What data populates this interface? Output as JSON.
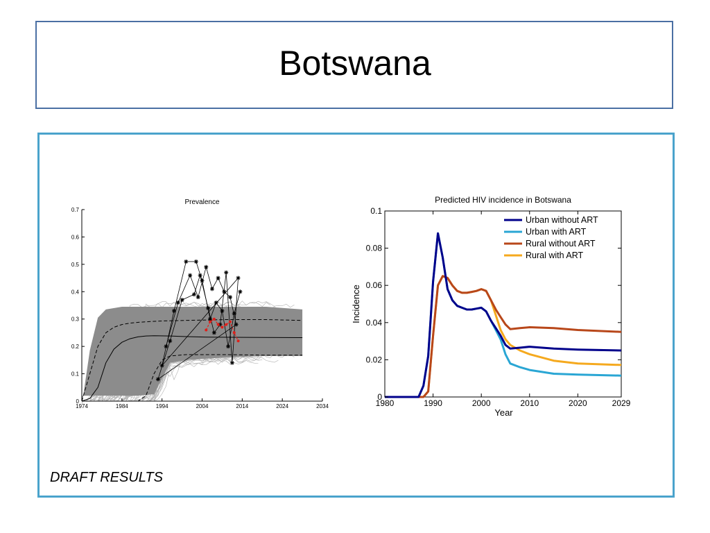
{
  "slide": {
    "title": "Botswana",
    "footer": "DRAFT RESULTS"
  },
  "colors": {
    "title_border": "#4a6fa3",
    "content_border": "#4aa3cc",
    "urban_no_art": "#00008b",
    "urban_art": "#2aa6d4",
    "rural_no_art": "#b8471a",
    "rural_art": "#f5a91e"
  },
  "chart_data": [
    {
      "type": "line",
      "title": "Prevalence",
      "xlabel": "",
      "ylabel": "",
      "xlim": [
        1974,
        2034
      ],
      "ylim": [
        0,
        0.7
      ],
      "xticks": [
        "1974",
        "1984",
        "1994",
        "2004",
        "2014",
        "2024",
        "2034"
      ],
      "yticks": [
        "0",
        "0.1",
        "0.2",
        "0.3",
        "0.4",
        "0.5",
        "0.6",
        "0.7"
      ],
      "grid": false,
      "series": [
        {
          "style": "solid",
          "x": [
            1974,
            1976,
            1978,
            1980,
            1982,
            1984,
            1986,
            1988,
            1990,
            1992,
            1996,
            2000,
            2005,
            2015,
            2029
          ],
          "y": [
            0,
            0.01,
            0.05,
            0.14,
            0.19,
            0.215,
            0.228,
            0.235,
            0.238,
            0.239,
            0.238,
            0.236,
            0.234,
            0.233,
            0.232
          ]
        },
        {
          "style": "dashed",
          "x": [
            1974,
            1976,
            1978,
            1980,
            1982,
            1984,
            1986,
            1988,
            1990,
            1994,
            2000,
            2010,
            2020,
            2029
          ],
          "y": [
            0,
            0.1,
            0.2,
            0.25,
            0.27,
            0.28,
            0.285,
            0.288,
            0.29,
            0.293,
            0.295,
            0.298,
            0.298,
            0.295
          ]
        },
        {
          "style": "dashed",
          "x": [
            1974,
            1984,
            1988,
            1990,
            1992,
            1994,
            1996,
            2000,
            2010,
            2020,
            2029
          ],
          "y": [
            0,
            0,
            0,
            0.02,
            0.1,
            0.15,
            0.165,
            0.17,
            0.17,
            0.168,
            0.168
          ]
        }
      ],
      "uncertainty_band": {
        "x": [
          1974,
          1976,
          1978,
          1980,
          1984,
          1988,
          1992,
          1996,
          2000,
          2010,
          2020,
          2029
        ],
        "lower": [
          0,
          0,
          0,
          0,
          0,
          0,
          0.005,
          0.12,
          0.13,
          0.14,
          0.145,
          0.145
        ],
        "upper": [
          0,
          0.2,
          0.32,
          0.35,
          0.36,
          0.36,
          0.36,
          0.36,
          0.36,
          0.36,
          0.36,
          0.35
        ]
      },
      "observations": [
        [
          1993,
          0.08
        ],
        [
          1994,
          0.13
        ],
        [
          1995,
          0.2
        ],
        [
          1996,
          0.22
        ],
        [
          1997,
          0.33
        ],
        [
          1998,
          0.36
        ],
        [
          1999,
          0.37
        ],
        [
          2000,
          0.51
        ],
        [
          2001,
          0.46
        ],
        [
          2002,
          0.39
        ],
        [
          2002.5,
          0.51
        ],
        [
          2003,
          0.38
        ],
        [
          2003.5,
          0.46
        ],
        [
          2004,
          0.44
        ],
        [
          2005,
          0.49
        ],
        [
          2005.5,
          0.34
        ],
        [
          2006,
          0.3
        ],
        [
          2006.5,
          0.41
        ],
        [
          2007,
          0.25
        ],
        [
          2007.5,
          0.36
        ],
        [
          2008,
          0.45
        ],
        [
          2008.5,
          0.28
        ],
        [
          2009,
          0.33
        ],
        [
          2009.5,
          0.4
        ],
        [
          2010,
          0.47
        ],
        [
          2010.5,
          0.2
        ],
        [
          2011,
          0.38
        ],
        [
          2011.5,
          0.14
        ],
        [
          2012,
          0.32
        ],
        [
          2012.5,
          0.28
        ],
        [
          2013,
          0.45
        ],
        [
          2013.5,
          0.4
        ]
      ],
      "red_points": [
        [
          2005,
          0.26
        ],
        [
          2006,
          0.29
        ],
        [
          2007,
          0.3
        ],
        [
          2008,
          0.28
        ],
        [
          2009,
          0.27
        ],
        [
          2010,
          0.28
        ],
        [
          2011,
          0.29
        ],
        [
          2012,
          0.25
        ],
        [
          2013,
          0.22
        ]
      ]
    },
    {
      "type": "line",
      "title": "Predicted HIV incidence in Botswana",
      "xlabel": "Year",
      "ylabel": "Incidence",
      "xlim": [
        1980,
        2029
      ],
      "ylim": [
        0,
        0.1
      ],
      "xticks": [
        "1980",
        "1990",
        "2000",
        "2010",
        "2020",
        "2029"
      ],
      "yticks": [
        "0",
        "0.02",
        "0.04",
        "0.06",
        "0.08",
        "0.1"
      ],
      "grid": false,
      "legend_position": "top-right",
      "series": [
        {
          "name": "Urban without ART",
          "x": [
            1980,
            1987,
            1988,
            1989,
            1990,
            1991,
            1992,
            1993,
            1994,
            1995,
            1996,
            1997,
            1998,
            1999,
            2000,
            2001,
            2002,
            2003,
            2004,
            2005,
            2006,
            2008,
            2010,
            2015,
            2020,
            2029
          ],
          "y": [
            0,
            0,
            0.006,
            0.022,
            0.062,
            0.088,
            0.075,
            0.058,
            0.052,
            0.049,
            0.048,
            0.047,
            0.047,
            0.0475,
            0.048,
            0.046,
            0.041,
            0.037,
            0.033,
            0.028,
            0.026,
            0.0265,
            0.027,
            0.026,
            0.0255,
            0.025
          ]
        },
        {
          "name": "Urban with ART",
          "x": [
            1980,
            1987,
            1988,
            1989,
            1990,
            1991,
            1992,
            1993,
            1994,
            1995,
            1996,
            1997,
            1998,
            1999,
            2000,
            2001,
            2002,
            2003,
            2004,
            2005,
            2006,
            2008,
            2010,
            2015,
            2020,
            2029
          ],
          "y": [
            0,
            0,
            0.006,
            0.022,
            0.062,
            0.088,
            0.075,
            0.058,
            0.052,
            0.049,
            0.048,
            0.047,
            0.047,
            0.0475,
            0.048,
            0.046,
            0.041,
            0.036,
            0.031,
            0.023,
            0.018,
            0.016,
            0.0145,
            0.0125,
            0.012,
            0.0115
          ]
        },
        {
          "name": "Rural without ART",
          "x": [
            1980,
            1988,
            1989,
            1990,
            1991,
            1992,
            1993,
            1994,
            1995,
            1996,
            1997,
            1998,
            1999,
            2000,
            2001,
            2002,
            2003,
            2004,
            2005,
            2006,
            2008,
            2010,
            2015,
            2020,
            2029
          ],
          "y": [
            0,
            0,
            0.003,
            0.033,
            0.06,
            0.065,
            0.064,
            0.06,
            0.057,
            0.056,
            0.056,
            0.0565,
            0.057,
            0.058,
            0.057,
            0.052,
            0.047,
            0.043,
            0.039,
            0.0365,
            0.037,
            0.0375,
            0.037,
            0.036,
            0.035
          ]
        },
        {
          "name": "Rural with ART",
          "x": [
            1980,
            1988,
            1989,
            1990,
            1991,
            1992,
            1993,
            1994,
            1995,
            1996,
            1997,
            1998,
            1999,
            2000,
            2001,
            2002,
            2003,
            2004,
            2005,
            2006,
            2008,
            2010,
            2015,
            2020,
            2029
          ],
          "y": [
            0,
            0,
            0.003,
            0.033,
            0.06,
            0.065,
            0.064,
            0.06,
            0.057,
            0.056,
            0.056,
            0.0565,
            0.057,
            0.058,
            0.057,
            0.052,
            0.044,
            0.036,
            0.031,
            0.028,
            0.025,
            0.023,
            0.0195,
            0.018,
            0.0172
          ]
        }
      ]
    }
  ]
}
